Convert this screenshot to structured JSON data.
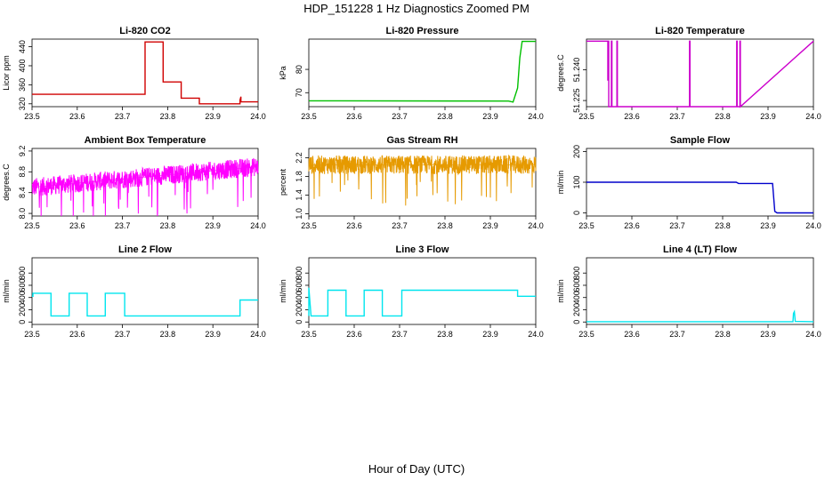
{
  "title": "HDP_151228  1 Hz Diagnostics Zoomed PM",
  "xlabel": "Hour of Day (UTC)",
  "chart_data": [
    {
      "type": "line",
      "title": "Li-820 CO2",
      "ylabel": "Licor ppm",
      "color": "#d00000",
      "xlim": [
        23.5,
        24.0
      ],
      "xticks": [
        "23.5",
        "23.6",
        "23.7",
        "23.8",
        "23.9",
        "24.0"
      ],
      "ylim": [
        314,
        456
      ],
      "yticks": [
        "320",
        "360",
        "400",
        "440"
      ],
      "series": [
        {
          "x": [
            23.5,
            23.75,
            23.75,
            23.79,
            23.79,
            23.83,
            23.83,
            23.87,
            23.87,
            23.96,
            23.96,
            23.962,
            23.962,
            24.0
          ],
          "y": [
            340,
            340,
            450,
            450,
            366,
            366,
            332,
            332,
            320,
            320,
            328,
            335,
            324,
            324
          ]
        }
      ]
    },
    {
      "type": "line",
      "title": "Li-820 Pressure",
      "ylabel": "kPa",
      "color": "#00c000",
      "xlim": [
        23.5,
        24.0
      ],
      "xticks": [
        "23.5",
        "23.6",
        "23.7",
        "23.8",
        "23.9",
        "24.0"
      ],
      "ylim": [
        64,
        93
      ],
      "yticks": [
        "70",
        "80"
      ],
      "series": [
        {
          "x": [
            23.5,
            23.94,
            23.95,
            23.96,
            23.965,
            23.97,
            24.0
          ],
          "y": [
            66.5,
            66.4,
            66.0,
            72,
            85,
            92,
            92
          ]
        }
      ]
    },
    {
      "type": "line",
      "title": "Li-820 Temperature",
      "ylabel": "degrees.C",
      "color": "#cc00cc",
      "xlim": [
        23.5,
        24.0
      ],
      "xticks": [
        "23.5",
        "23.6",
        "23.7",
        "23.8",
        "23.9",
        "24.0"
      ],
      "ylim": [
        51.222,
        51.255
      ],
      "yticks": [
        "51.225",
        "51.240"
      ],
      "series": [
        {
          "x": [
            23.5,
            23.547,
            23.547,
            23.548,
            23.548,
            23.549,
            23.549,
            23.555,
            23.555,
            23.556,
            23.556,
            23.567,
            23.567,
            23.568,
            23.568,
            23.727,
            23.727,
            23.728,
            23.728,
            23.831,
            23.831,
            23.832,
            23.832,
            23.838,
            23.838,
            23.839,
            23.839,
            24.0
          ],
          "y": [
            51.254,
            51.254,
            51.235,
            51.235,
            51.254,
            51.254,
            51.222,
            51.222,
            51.254,
            51.254,
            51.222,
            51.222,
            51.254,
            51.254,
            51.222,
            51.222,
            51.254,
            51.254,
            51.222,
            51.222,
            51.254,
            51.254,
            51.222,
            51.222,
            51.254,
            51.254,
            51.222,
            51.254
          ]
        }
      ]
    },
    {
      "type": "line",
      "title": "Ambient Box Temperature",
      "ylabel": "degrees.C",
      "color": "#ff00ff",
      "xlim": [
        23.5,
        24.0
      ],
      "xticks": [
        "23.5",
        "23.6",
        "23.7",
        "23.8",
        "23.9",
        "24.0"
      ],
      "ylim": [
        7.95,
        9.25
      ],
      "yticks": [
        "8.0",
        "8.4",
        "8.8",
        "9.2"
      ],
      "noise": {
        "from": 8.5,
        "to": 8.9,
        "amp": 0.18,
        "density": 900
      },
      "series": [
        {
          "x": [
            23.5,
            24.0
          ],
          "y": [
            8.5,
            8.9
          ]
        }
      ]
    },
    {
      "type": "line",
      "title": "Gas Stream RH",
      "ylabel": "percent",
      "color": "#e69a00",
      "xlim": [
        23.5,
        24.0
      ],
      "xticks": [
        "23.5",
        "23.6",
        "23.7",
        "23.8",
        "23.9",
        "24.0"
      ],
      "ylim": [
        0.95,
        2.4
      ],
      "yticks": [
        "1.0",
        "1.4",
        "1.8",
        "2.2"
      ],
      "noise": {
        "from": 2.05,
        "to": 2.05,
        "amp": 0.2,
        "density": 900
      },
      "series": [
        {
          "x": [
            23.5,
            24.0
          ],
          "y": [
            2.05,
            2.05
          ]
        }
      ]
    },
    {
      "type": "line",
      "title": "Sample Flow",
      "ylabel": "ml/min",
      "color": "#0000cc",
      "xlim": [
        23.5,
        24.0
      ],
      "xticks": [
        "23.5",
        "23.6",
        "23.7",
        "23.8",
        "23.9",
        "24.0"
      ],
      "ylim": [
        -10,
        210
      ],
      "yticks": [
        "0",
        "100",
        "200"
      ],
      "series": [
        {
          "x": [
            23.5,
            23.83,
            23.835,
            23.91,
            23.915,
            23.92,
            24.0
          ],
          "y": [
            100,
            100,
            96,
            96,
            5,
            0,
            0
          ]
        }
      ]
    },
    {
      "type": "line",
      "title": "Line 2 Flow",
      "ylabel": "ml/min",
      "color": "#00e5ee",
      "xlim": [
        23.5,
        24.0
      ],
      "xticks": [
        "23.5",
        "23.6",
        "23.7",
        "23.8",
        "23.9",
        "24.0"
      ],
      "ylim": [
        -40,
        1050
      ],
      "yticks": [
        "0",
        "200",
        "400",
        "600",
        "800"
      ],
      "series": [
        {
          "x": [
            23.5,
            23.502,
            23.502,
            23.542,
            23.542,
            23.582,
            23.582,
            23.622,
            23.622,
            23.662,
            23.662,
            23.705,
            23.705,
            23.96,
            23.96,
            24.0
          ],
          "y": [
            420,
            420,
            470,
            470,
            100,
            100,
            470,
            470,
            100,
            100,
            470,
            470,
            100,
            100,
            360,
            360
          ]
        }
      ]
    },
    {
      "type": "line",
      "title": "Line 3 Flow",
      "ylabel": "ml/min",
      "color": "#00e5ee",
      "xlim": [
        23.5,
        24.0
      ],
      "xticks": [
        "23.5",
        "23.6",
        "23.7",
        "23.8",
        "23.9",
        "24.0"
      ],
      "ylim": [
        -40,
        1050
      ],
      "yticks": [
        "0",
        "200",
        "400",
        "600",
        "800"
      ],
      "series": [
        {
          "x": [
            23.5,
            23.5,
            23.505,
            23.505,
            23.542,
            23.542,
            23.582,
            23.582,
            23.622,
            23.622,
            23.662,
            23.662,
            23.705,
            23.705,
            23.96,
            23.96,
            24.0
          ],
          "y": [
            100,
            560,
            100,
            100,
            100,
            520,
            520,
            100,
            100,
            520,
            520,
            100,
            100,
            520,
            520,
            420,
            420
          ]
        }
      ]
    },
    {
      "type": "line",
      "title": "Line 4 (LT) Flow",
      "ylabel": "ml/min",
      "color": "#00e5ee",
      "xlim": [
        23.5,
        24.0
      ],
      "xticks": [
        "23.5",
        "23.6",
        "23.7",
        "23.8",
        "23.9",
        "24.0"
      ],
      "ylim": [
        -40,
        1050
      ],
      "yticks": [
        "0",
        "200",
        "400",
        "600",
        "800"
      ],
      "series": [
        {
          "x": [
            23.5,
            23.955,
            23.956,
            23.958,
            23.96,
            24.0
          ],
          "y": [
            5,
            5,
            140,
            170,
            10,
            5
          ]
        }
      ]
    }
  ]
}
